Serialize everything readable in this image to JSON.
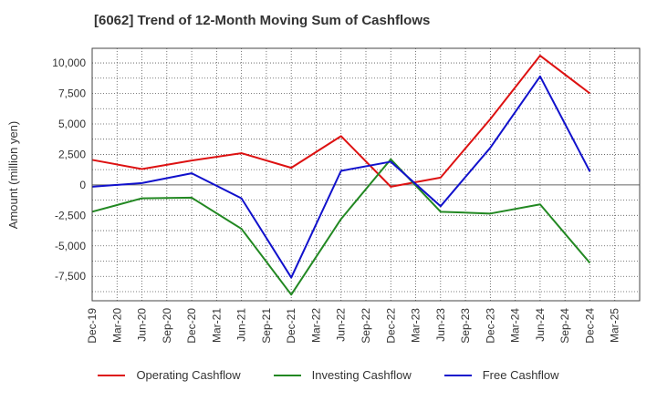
{
  "chart_data": {
    "type": "line",
    "title": "[6062]  Trend of 12-Month Moving Sum of Cashflows",
    "xlabel": "",
    "ylabel": "Amount (million yen)",
    "ylim": [
      -9500,
      11200
    ],
    "yticks": [
      10000,
      7500,
      5000,
      2500,
      0,
      -2500,
      -5000,
      -7500
    ],
    "ytick_labels": [
      "10,000",
      "7,500",
      "5,000",
      "2,500",
      "0",
      "-2,500",
      "-5,000",
      "-7,500"
    ],
    "x_tick_labels": [
      "Dec-19",
      "Mar-20",
      "Jun-20",
      "Sep-20",
      "Dec-20",
      "Mar-21",
      "Jun-21",
      "Sep-21",
      "Dec-21",
      "Mar-22",
      "Jun-22",
      "Sep-22",
      "Dec-22",
      "Mar-23",
      "Jun-23",
      "Sep-23",
      "Dec-23",
      "Mar-24",
      "Jun-24",
      "Sep-24",
      "Dec-24",
      "Mar-25"
    ],
    "x": [
      "Dec-19",
      "Jun-20",
      "Dec-20",
      "Jun-21",
      "Dec-21",
      "Jun-22",
      "Dec-22",
      "Jun-23",
      "Dec-23",
      "Jun-24",
      "Dec-24"
    ],
    "series": [
      {
        "name": "Operating Cashflow",
        "color": "#dd1111",
        "values": [
          2050,
          1300,
          2000,
          2600,
          1400,
          4000,
          -150,
          600,
          5400,
          10600,
          7500
        ]
      },
      {
        "name": "Investing Cashflow",
        "color": "#228822",
        "values": [
          -2200,
          -1100,
          -1050,
          -3600,
          -9000,
          -2800,
          2100,
          -2200,
          -2350,
          -1600,
          -6400
        ]
      },
      {
        "name": "Free Cashflow",
        "color": "#1111cc",
        "values": [
          -150,
          150,
          950,
          -1100,
          -7600,
          1150,
          1900,
          -1750,
          3050,
          8900,
          1100
        ]
      }
    ],
    "grid": true,
    "legend_position": "bottom"
  }
}
